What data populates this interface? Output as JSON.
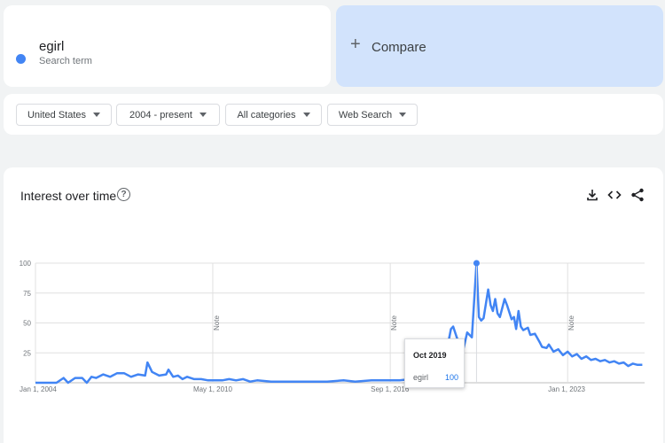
{
  "search_term": {
    "name": "egirl",
    "subtitle": "Search term",
    "color": "#4285f4"
  },
  "compare": {
    "icon": "plus-icon",
    "label": "Compare"
  },
  "filters": {
    "region": "United States",
    "time_range": "2004 - present",
    "category": "All categories",
    "search_type": "Web Search"
  },
  "chart_header": {
    "title": "Interest over time",
    "help_icon": "help-circle-icon",
    "tools": [
      "download-icon",
      "embed-code-icon",
      "share-icon"
    ]
  },
  "tooltip": {
    "date": "Oct 2019",
    "term": "egirl",
    "value": "100"
  },
  "notes": [
    "Note",
    "Note",
    "Note"
  ],
  "chart_data": {
    "type": "line",
    "title": "Interest over time",
    "xlabel": "",
    "ylabel": "",
    "ylim": [
      0,
      100
    ],
    "y_ticks": [
      "100",
      "75",
      "50",
      "25"
    ],
    "x_ticks": [
      "Jan 1, 2004",
      "May 1, 2010",
      "Sep 1, 2016",
      "Jan 1, 2023"
    ],
    "grid": true,
    "series": [
      {
        "name": "egirl",
        "color": "#4285f4",
        "points": [
          [
            "2004-01",
            0
          ],
          [
            "2004-04",
            0
          ],
          [
            "2004-07",
            0
          ],
          [
            "2004-10",
            0
          ],
          [
            "2005-01",
            4
          ],
          [
            "2005-03",
            0
          ],
          [
            "2005-06",
            4
          ],
          [
            "2005-09",
            4
          ],
          [
            "2005-11",
            0
          ],
          [
            "2006-01",
            5
          ],
          [
            "2006-03",
            4
          ],
          [
            "2006-06",
            7
          ],
          [
            "2006-09",
            5
          ],
          [
            "2006-12",
            8
          ],
          [
            "2007-03",
            8
          ],
          [
            "2007-06",
            5
          ],
          [
            "2007-09",
            7
          ],
          [
            "2007-12",
            6
          ],
          [
            "2008-01",
            17
          ],
          [
            "2008-03",
            9
          ],
          [
            "2008-06",
            6
          ],
          [
            "2008-09",
            7
          ],
          [
            "2008-10",
            11
          ],
          [
            "2008-12",
            5
          ],
          [
            "2009-02",
            6
          ],
          [
            "2009-04",
            3
          ],
          [
            "2009-06",
            5
          ],
          [
            "2009-09",
            3
          ],
          [
            "2009-12",
            3
          ],
          [
            "2010-03",
            2
          ],
          [
            "2010-06",
            2
          ],
          [
            "2010-09",
            2
          ],
          [
            "2010-12",
            3
          ],
          [
            "2011-03",
            2
          ],
          [
            "2011-06",
            3
          ],
          [
            "2011-09",
            1
          ],
          [
            "2011-12",
            2
          ],
          [
            "2012-06",
            1
          ],
          [
            "2013-01",
            1
          ],
          [
            "2013-06",
            1
          ],
          [
            "2014-01",
            1
          ],
          [
            "2014-06",
            1
          ],
          [
            "2015-01",
            2
          ],
          [
            "2015-06",
            1
          ],
          [
            "2016-01",
            2
          ],
          [
            "2016-06",
            2
          ],
          [
            "2016-09",
            2
          ],
          [
            "2017-01",
            2
          ],
          [
            "2017-06",
            3
          ],
          [
            "2017-09",
            4
          ],
          [
            "2018-01",
            8
          ],
          [
            "2018-06",
            12
          ],
          [
            "2018-09",
            25
          ],
          [
            "2018-11",
            45
          ],
          [
            "2018-12",
            47
          ],
          [
            "2019-02",
            35
          ],
          [
            "2019-04",
            25
          ],
          [
            "2019-06",
            42
          ],
          [
            "2019-08",
            38
          ],
          [
            "2019-10",
            100
          ],
          [
            "2019-11",
            55
          ],
          [
            "2019-12",
            52
          ],
          [
            "2020-01",
            54
          ],
          [
            "2020-03",
            78
          ],
          [
            "2020-04",
            65
          ],
          [
            "2020-05",
            60
          ],
          [
            "2020-06",
            70
          ],
          [
            "2020-07",
            58
          ],
          [
            "2020-08",
            55
          ],
          [
            "2020-10",
            70
          ],
          [
            "2020-11",
            65
          ],
          [
            "2021-01",
            53
          ],
          [
            "2021-02",
            55
          ],
          [
            "2021-03",
            45
          ],
          [
            "2021-04",
            60
          ],
          [
            "2021-05",
            47
          ],
          [
            "2021-06",
            44
          ],
          [
            "2021-08",
            46
          ],
          [
            "2021-09",
            40
          ],
          [
            "2021-11",
            41
          ],
          [
            "2022-01",
            34
          ],
          [
            "2022-02",
            30
          ],
          [
            "2022-04",
            29
          ],
          [
            "2022-05",
            32
          ],
          [
            "2022-07",
            26
          ],
          [
            "2022-09",
            28
          ],
          [
            "2022-11",
            23
          ],
          [
            "2023-01",
            26
          ],
          [
            "2023-03",
            22
          ],
          [
            "2023-05",
            24
          ],
          [
            "2023-07",
            20
          ],
          [
            "2023-09",
            22
          ],
          [
            "2023-11",
            19
          ],
          [
            "2024-01",
            20
          ],
          [
            "2024-03",
            18
          ],
          [
            "2024-05",
            19
          ],
          [
            "2024-07",
            17
          ],
          [
            "2024-09",
            18
          ],
          [
            "2024-11",
            16
          ],
          [
            "2025-01",
            17
          ],
          [
            "2025-03",
            14
          ],
          [
            "2025-05",
            16
          ],
          [
            "2025-07",
            15
          ],
          [
            "2025-09",
            15
          ]
        ]
      }
    ]
  }
}
